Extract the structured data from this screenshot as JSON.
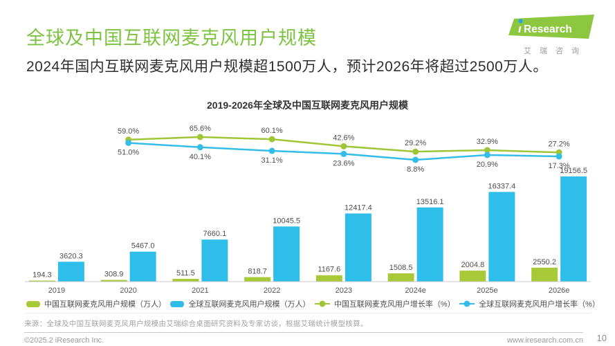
{
  "header": {
    "title": "全球及中国互联网麦克风用户规模",
    "subtitle": "2024年国内互联网麦克风用户规模超1500万人，预计2026年将超过2500万人。"
  },
  "logo": {
    "wordmark_i": "ı",
    "wordmark": "Research",
    "caption": "艾瑞咨询"
  },
  "chart_data": {
    "type": "bar+line",
    "title": "2019-2026年全球及中国互联网麦克风用户规模",
    "categories": [
      "2019",
      "2020",
      "2021",
      "2022",
      "2023",
      "2024e",
      "2025e",
      "2026e"
    ],
    "bar_series": [
      {
        "name": "中国互联网麦克风用户规模（万人）",
        "color": "#a9c938",
        "values": [
          194.3,
          308.9,
          511.5,
          818.7,
          1167.6,
          1508.5,
          2004.8,
          2550.2
        ]
      },
      {
        "name": "全球互联网麦克风用户规模（万人）",
        "color": "#2fbde9",
        "values": [
          3620.3,
          5467.0,
          7660.1,
          10045.5,
          12417.4,
          13516.1,
          16337.4,
          19156.5
        ]
      }
    ],
    "line_series": [
      {
        "name": "中国互联网麦克风用户增长率（%）",
        "color": "#9fc636",
        "x_start_index": 1,
        "values": [
          59.0,
          65.6,
          60.1,
          42.6,
          29.2,
          32.9,
          27.2
        ]
      },
      {
        "name": "全球互联网麦克风用户增长率（%）",
        "color": "#35bde9",
        "x_start_index": 1,
        "values": [
          51.0,
          40.1,
          31.1,
          23.6,
          8.8,
          20.9,
          17.3
        ]
      }
    ],
    "ylabel": "",
    "xlabel": "",
    "grid": false,
    "legend_position": "bottom",
    "bar_axis_max": 19156.5,
    "line_axis_unit": "%"
  },
  "footer": {
    "source": "来源：全球及中国互联网麦克风用户规模由艾瑞综合桌面研究资料及专家访谈，根据艾瑞统计模型核算。",
    "copyright": "©2025.2 iResearch Inc.",
    "website": "www.iresearch.com.cn",
    "page_number": "10"
  },
  "colors": {
    "title_green": "#7ec242",
    "logo_green": "#8dc63f",
    "logo_dot_blue": "#2da7df",
    "axis_line": "#c8c8c8",
    "label_gray": "#4d4d4d"
  }
}
